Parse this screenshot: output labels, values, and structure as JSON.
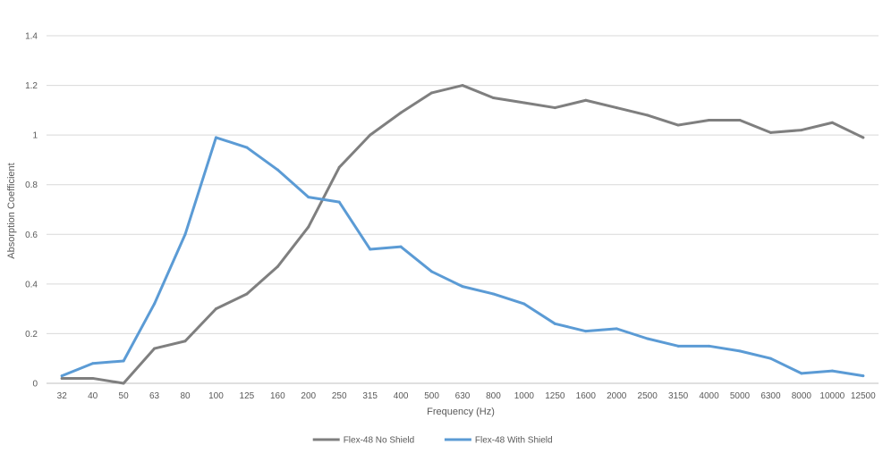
{
  "chart_data": {
    "type": "line",
    "categories": [
      "32",
      "40",
      "50",
      "63",
      "80",
      "100",
      "125",
      "160",
      "200",
      "250",
      "315",
      "400",
      "500",
      "630",
      "800",
      "1000",
      "1250",
      "1600",
      "2000",
      "2500",
      "3150",
      "4000",
      "5000",
      "6300",
      "8000",
      "10000",
      "12500"
    ],
    "series": [
      {
        "name": "Flex-48 No Shield",
        "color": "#7f7f7f",
        "values": [
          0.02,
          0.02,
          0.0,
          0.14,
          0.17,
          0.3,
          0.36,
          0.47,
          0.63,
          0.87,
          1.0,
          1.09,
          1.17,
          1.2,
          1.15,
          1.13,
          1.11,
          1.14,
          1.11,
          1.08,
          1.04,
          1.06,
          1.06,
          1.01,
          1.02,
          1.05,
          0.99
        ]
      },
      {
        "name": "Flex-48 With Shield",
        "color": "#5b9bd5",
        "values": [
          0.03,
          0.08,
          0.09,
          0.32,
          0.6,
          0.99,
          0.95,
          0.86,
          0.75,
          0.73,
          0.54,
          0.55,
          0.45,
          0.39,
          0.36,
          0.32,
          0.24,
          0.21,
          0.22,
          0.18,
          0.15,
          0.15,
          0.13,
          0.1,
          0.04,
          0.05,
          0.03
        ]
      }
    ],
    "xlabel": "Frequency (Hz)",
    "ylabel": "Absorption Coefficient",
    "ylim": [
      0,
      1.4
    ],
    "yticks": [
      "0",
      "0.2",
      "0.4",
      "0.6",
      "0.8",
      "1",
      "1.2",
      "1.4"
    ],
    "ytick_values": [
      0,
      0.2,
      0.4,
      0.6,
      0.8,
      1.0,
      1.2,
      1.4
    ],
    "grid": true,
    "legend_position": "bottom-center"
  }
}
